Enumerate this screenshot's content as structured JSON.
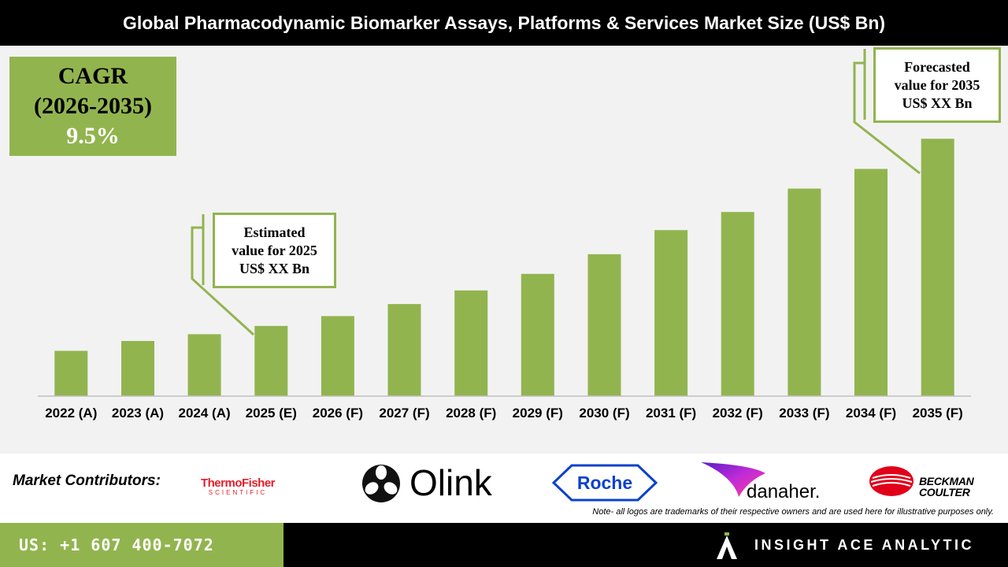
{
  "title": "Global Pharmacodynamic Biomarker Assays, Platforms & Services Market Size (US$ Bn)",
  "cagr": {
    "label": "CAGR",
    "period": "(2026-2035)",
    "value": "9.5%"
  },
  "callouts": {
    "estimated": [
      "Estimated",
      "value for 2025",
      "US$ XX Bn"
    ],
    "forecasted": [
      "Forecasted",
      "value for 2035",
      "US$ XX Bn"
    ]
  },
  "colors": {
    "bar": "#92b44f",
    "accent": "#92b44f",
    "header": "#000000",
    "chart_bg": "#f2f2f2"
  },
  "chart_data": {
    "type": "bar",
    "categories": [
      "2022 (A)",
      "2023 (A)",
      "2024 (A)",
      "2025 (E)",
      "2026 (F)",
      "2027 (F)",
      "2028 (F)",
      "2029 (F)",
      "2030 (F)",
      "2031 (F)",
      "2032 (F)",
      "2033 (F)",
      "2034 (F)",
      "2035 (F)"
    ],
    "values": [
      60,
      73,
      82,
      93,
      106,
      122,
      140,
      162,
      188,
      220,
      244,
      275,
      301,
      341
    ],
    "ylim": [
      0,
      360
    ],
    "value_units": "relative (no axis printed)",
    "grid": false,
    "legend": "none"
  },
  "contributors": {
    "label": "Market Contributors:",
    "logos": [
      {
        "name": "thermo-fisher",
        "line1": "ThermoFisher",
        "line2": "SCIENTIFIC"
      },
      {
        "name": "olink",
        "text": "Olink"
      },
      {
        "name": "roche",
        "text": "Roche"
      },
      {
        "name": "danaher",
        "text": "danaher."
      },
      {
        "name": "beckman-coulter",
        "line1": "BECKMAN",
        "line2": "COULTER"
      }
    ]
  },
  "note": "Note- all logos are trademarks of their respective owners and are used here for illustrative purposes only.",
  "footer": {
    "phone": "US: +1 607 400-7072",
    "brand": "INSIGHT ACE ANALYTIC"
  }
}
